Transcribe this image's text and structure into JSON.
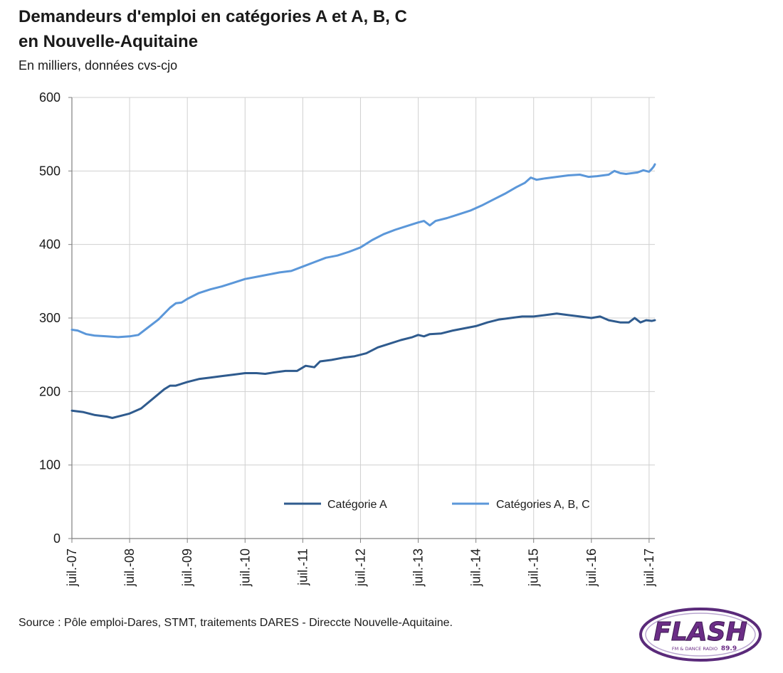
{
  "chart_data": {
    "type": "line",
    "title_line1": "Demandeurs d'emploi en catégories A et A, B, C",
    "title_line2": "en Nouvelle-Aquitaine",
    "subtitle": "En milliers, données cvs-cjo",
    "ylim": [
      0,
      600
    ],
    "yticks": [
      "0",
      "100",
      "200",
      "300",
      "400",
      "500",
      "600"
    ],
    "xlim": [
      2007.5,
      2017.6
    ],
    "xticks": [
      {
        "label": "juil.-07",
        "x": 2007.5
      },
      {
        "label": "juil.-08",
        "x": 2008.5
      },
      {
        "label": "juil.-09",
        "x": 2009.5
      },
      {
        "label": "juil.-10",
        "x": 2010.5
      },
      {
        "label": "juil.-11",
        "x": 2011.5
      },
      {
        "label": "juil.-12",
        "x": 2012.5
      },
      {
        "label": "juil.-13",
        "x": 2013.5
      },
      {
        "label": "juil.-14",
        "x": 2014.5
      },
      {
        "label": "juil.-15",
        "x": 2015.5
      },
      {
        "label": "juil.-16",
        "x": 2016.5
      },
      {
        "label": "juil.-17",
        "x": 2017.5
      }
    ],
    "grid": true,
    "legend_position": "bottom-inside",
    "series": [
      {
        "name": "Catégorie A",
        "color": "#2f5b8e",
        "points": [
          [
            2007.5,
            174
          ],
          [
            2007.7,
            172
          ],
          [
            2007.9,
            168
          ],
          [
            2008.1,
            166
          ],
          [
            2008.2,
            164
          ],
          [
            2008.35,
            167
          ],
          [
            2008.5,
            170
          ],
          [
            2008.7,
            177
          ],
          [
            2008.9,
            190
          ],
          [
            2009.1,
            203
          ],
          [
            2009.2,
            208
          ],
          [
            2009.3,
            208
          ],
          [
            2009.5,
            213
          ],
          [
            2009.7,
            217
          ],
          [
            2009.9,
            219
          ],
          [
            2010.1,
            221
          ],
          [
            2010.3,
            223
          ],
          [
            2010.5,
            225
          ],
          [
            2010.7,
            225
          ],
          [
            2010.85,
            224
          ],
          [
            2011.0,
            226
          ],
          [
            2011.2,
            228
          ],
          [
            2011.4,
            228
          ],
          [
            2011.55,
            235
          ],
          [
            2011.7,
            233
          ],
          [
            2011.8,
            241
          ],
          [
            2012.0,
            243
          ],
          [
            2012.2,
            246
          ],
          [
            2012.4,
            248
          ],
          [
            2012.6,
            252
          ],
          [
            2012.8,
            260
          ],
          [
            2013.0,
            265
          ],
          [
            2013.2,
            270
          ],
          [
            2013.4,
            274
          ],
          [
            2013.5,
            277
          ],
          [
            2013.6,
            275
          ],
          [
            2013.7,
            278
          ],
          [
            2013.9,
            279
          ],
          [
            2014.1,
            283
          ],
          [
            2014.3,
            286
          ],
          [
            2014.5,
            289
          ],
          [
            2014.7,
            294
          ],
          [
            2014.9,
            298
          ],
          [
            2015.1,
            300
          ],
          [
            2015.3,
            302
          ],
          [
            2015.5,
            302
          ],
          [
            2015.7,
            304
          ],
          [
            2015.9,
            306
          ],
          [
            2016.1,
            304
          ],
          [
            2016.3,
            302
          ],
          [
            2016.5,
            300
          ],
          [
            2016.65,
            302
          ],
          [
            2016.8,
            297
          ],
          [
            2017.0,
            294
          ],
          [
            2017.15,
            294
          ],
          [
            2017.25,
            300
          ],
          [
            2017.35,
            294
          ],
          [
            2017.45,
            297
          ],
          [
            2017.55,
            296
          ],
          [
            2017.6,
            297
          ]
        ]
      },
      {
        "name": "Catégories A, B, C",
        "color": "#5b97d9",
        "points": [
          [
            2007.5,
            284
          ],
          [
            2007.6,
            283
          ],
          [
            2007.75,
            278
          ],
          [
            2007.9,
            276
          ],
          [
            2008.1,
            275
          ],
          [
            2008.3,
            274
          ],
          [
            2008.5,
            275
          ],
          [
            2008.65,
            277
          ],
          [
            2008.8,
            286
          ],
          [
            2009.0,
            298
          ],
          [
            2009.2,
            314
          ],
          [
            2009.3,
            320
          ],
          [
            2009.4,
            321
          ],
          [
            2009.5,
            326
          ],
          [
            2009.7,
            334
          ],
          [
            2009.9,
            339
          ],
          [
            2010.1,
            343
          ],
          [
            2010.3,
            348
          ],
          [
            2010.5,
            353
          ],
          [
            2010.7,
            356
          ],
          [
            2010.9,
            359
          ],
          [
            2011.1,
            362
          ],
          [
            2011.3,
            364
          ],
          [
            2011.5,
            370
          ],
          [
            2011.7,
            376
          ],
          [
            2011.9,
            382
          ],
          [
            2012.1,
            385
          ],
          [
            2012.3,
            390
          ],
          [
            2012.5,
            396
          ],
          [
            2012.7,
            406
          ],
          [
            2012.9,
            414
          ],
          [
            2013.1,
            420
          ],
          [
            2013.3,
            425
          ],
          [
            2013.5,
            430
          ],
          [
            2013.6,
            432
          ],
          [
            2013.7,
            426
          ],
          [
            2013.8,
            432
          ],
          [
            2014.0,
            436
          ],
          [
            2014.2,
            441
          ],
          [
            2014.4,
            446
          ],
          [
            2014.6,
            453
          ],
          [
            2014.8,
            461
          ],
          [
            2015.0,
            469
          ],
          [
            2015.2,
            478
          ],
          [
            2015.35,
            484
          ],
          [
            2015.45,
            491
          ],
          [
            2015.55,
            488
          ],
          [
            2015.7,
            490
          ],
          [
            2015.9,
            492
          ],
          [
            2016.1,
            494
          ],
          [
            2016.3,
            495
          ],
          [
            2016.45,
            492
          ],
          [
            2016.6,
            493
          ],
          [
            2016.8,
            495
          ],
          [
            2016.9,
            500
          ],
          [
            2017.0,
            497
          ],
          [
            2017.1,
            496
          ],
          [
            2017.3,
            498
          ],
          [
            2017.4,
            501
          ],
          [
            2017.5,
            499
          ],
          [
            2017.55,
            503
          ],
          [
            2017.58,
            506
          ],
          [
            2017.6,
            509
          ]
        ]
      }
    ]
  },
  "source": "Source : Pôle emploi-Dares, STMT, traitements DARES - Direccte Nouvelle-Aquitaine.",
  "logo": {
    "text": "FLASH",
    "tagline": "FM & DANCE RADIO",
    "frequency": "89.9",
    "color_text": "#6b2d86",
    "color_ring": "#5a2a7a"
  }
}
